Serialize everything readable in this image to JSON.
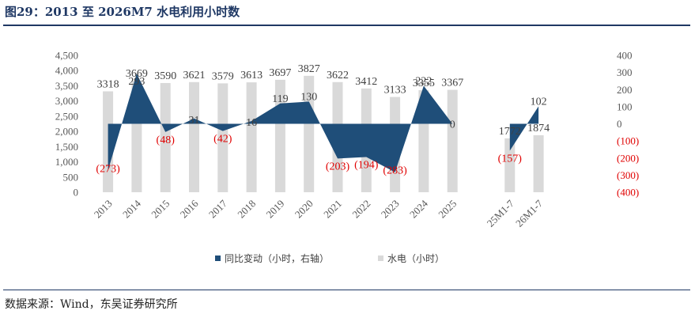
{
  "header": {
    "title": "图29：2013 至 2026M7 水电利用小时数"
  },
  "footer": {
    "source": "数据来源：Wind，东吴证券研究所"
  },
  "chart_data": {
    "type": "bar",
    "categories": [
      "2013",
      "2014",
      "2015",
      "2016",
      "2017",
      "2018",
      "2019",
      "2020",
      "2021",
      "2022",
      "2023",
      "2024",
      "2025",
      "",
      "25M1-7",
      "26M1-7"
    ],
    "series": [
      {
        "name": "水电（小时）",
        "type": "bar",
        "axis": "left",
        "color": "#d9d9d9",
        "values": [
          3318,
          3669,
          3590,
          3621,
          3579,
          3613,
          3697,
          3827,
          3622,
          3412,
          3133,
          3355,
          3367,
          null,
          1772,
          1874
        ]
      },
      {
        "name": "同比变动（小时，右轴）",
        "type": "area",
        "axis": "right",
        "color": "#1f4e79",
        "values": [
          -273,
          293,
          -48,
          31,
          -42,
          16,
          119,
          130,
          -203,
          -194,
          -283,
          222,
          0,
          null,
          -157,
          102
        ]
      }
    ],
    "left_axis": {
      "min": 0,
      "max": 4500,
      "step": 500,
      "ticks": [
        "0",
        "500",
        "1,000",
        "1,500",
        "2,000",
        "2,500",
        "3,000",
        "3,500",
        "4,000",
        "4,500"
      ]
    },
    "right_axis": {
      "min": -400,
      "max": 400,
      "step": 100,
      "ticks": [
        "(400)",
        "(300)",
        "(200)",
        "(100)",
        "0",
        "100",
        "200",
        "300",
        "400"
      ]
    },
    "bar_labels": [
      "3318",
      "3669",
      "3590",
      "3621",
      "3579",
      "3613",
      "3697",
      "3827",
      "3622",
      "3412",
      "3133",
      "3355",
      "3367",
      "",
      "1772",
      "1874"
    ],
    "area_labels": [
      "(273)",
      "293",
      "(48)",
      "31",
      "(42)",
      "16",
      "119",
      "130",
      "(203)",
      "(194)",
      "(283)",
      "222",
      "0",
      "",
      "(157)",
      "102"
    ],
    "legend_placement": "bottom",
    "grid": false
  }
}
